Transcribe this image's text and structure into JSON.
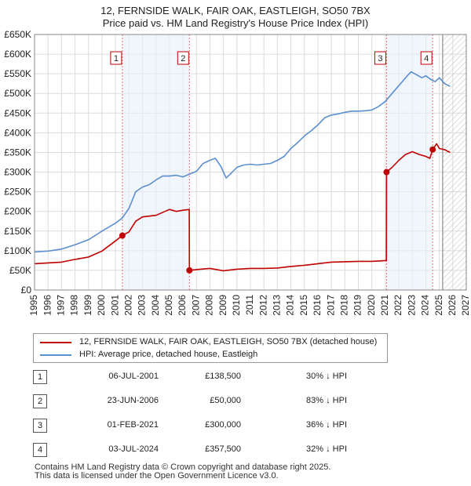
{
  "title_line1": "12, FERNSIDE WALK, FAIR OAK, EASTLEIGH, SO50 7BX",
  "title_line2": "Price paid vs. HM Land Registry's House Price Index (HPI)",
  "chart_data": {
    "type": "line",
    "xlim": [
      1995,
      2027
    ],
    "ylim": [
      0,
      650000
    ],
    "yticks": [
      {
        "v": 0,
        "label": "£0"
      },
      {
        "v": 50000,
        "label": "£50K"
      },
      {
        "v": 100000,
        "label": "£100K"
      },
      {
        "v": 150000,
        "label": "£150K"
      },
      {
        "v": 200000,
        "label": "£200K"
      },
      {
        "v": 250000,
        "label": "£250K"
      },
      {
        "v": 300000,
        "label": "£300K"
      },
      {
        "v": 350000,
        "label": "£350K"
      },
      {
        "v": 400000,
        "label": "£400K"
      },
      {
        "v": 450000,
        "label": "£450K"
      },
      {
        "v": 500000,
        "label": "£500K"
      },
      {
        "v": 550000,
        "label": "£550K"
      },
      {
        "v": 600000,
        "label": "£600K"
      },
      {
        "v": 650000,
        "label": "£650K"
      }
    ],
    "xticks": [
      "1995",
      "1996",
      "1997",
      "1998",
      "1999",
      "2000",
      "2001",
      "2002",
      "2003",
      "2004",
      "2005",
      "2006",
      "2007",
      "2008",
      "2009",
      "2010",
      "2011",
      "2012",
      "2013",
      "2014",
      "2015",
      "2016",
      "2017",
      "2018",
      "2019",
      "2020",
      "2021",
      "2022",
      "2023",
      "2024",
      "2025",
      "2026",
      "2027"
    ],
    "forecast_start": 2025.25,
    "series": [
      {
        "name": "HPI: Average price, detached house, Eastleigh",
        "color": "#5b8fcf",
        "points": [
          [
            1995.0,
            97000
          ],
          [
            1996.0,
            99000
          ],
          [
            1997.0,
            104000
          ],
          [
            1998.0,
            115000
          ],
          [
            1999.0,
            128000
          ],
          [
            2000.0,
            150000
          ],
          [
            2001.0,
            170000
          ],
          [
            2001.5,
            183000
          ],
          [
            2002.0,
            208000
          ],
          [
            2002.5,
            250000
          ],
          [
            2003.0,
            262000
          ],
          [
            2003.5,
            268000
          ],
          [
            2004.0,
            280000
          ],
          [
            2004.5,
            290000
          ],
          [
            2005.0,
            290000
          ],
          [
            2005.5,
            292000
          ],
          [
            2006.0,
            288000
          ],
          [
            2006.5,
            295000
          ],
          [
            2007.0,
            302000
          ],
          [
            2007.5,
            322000
          ],
          [
            2008.0,
            330000
          ],
          [
            2008.4,
            335000
          ],
          [
            2008.8,
            315000
          ],
          [
            2009.2,
            285000
          ],
          [
            2009.6,
            298000
          ],
          [
            2010.0,
            312000
          ],
          [
            2010.5,
            318000
          ],
          [
            2011.0,
            320000
          ],
          [
            2011.5,
            318000
          ],
          [
            2012.0,
            320000
          ],
          [
            2012.5,
            322000
          ],
          [
            2013.0,
            330000
          ],
          [
            2013.5,
            340000
          ],
          [
            2014.0,
            360000
          ],
          [
            2014.5,
            375000
          ],
          [
            2015.0,
            392000
          ],
          [
            2015.5,
            405000
          ],
          [
            2016.0,
            420000
          ],
          [
            2016.5,
            438000
          ],
          [
            2017.0,
            445000
          ],
          [
            2017.5,
            448000
          ],
          [
            2018.0,
            452000
          ],
          [
            2018.5,
            455000
          ],
          [
            2019.0,
            455000
          ],
          [
            2019.5,
            456000
          ],
          [
            2020.0,
            458000
          ],
          [
            2020.5,
            467000
          ],
          [
            2021.0,
            480000
          ],
          [
            2021.5,
            500000
          ],
          [
            2022.0,
            520000
          ],
          [
            2022.5,
            540000
          ],
          [
            2022.9,
            555000
          ],
          [
            2023.3,
            548000
          ],
          [
            2023.7,
            540000
          ],
          [
            2024.0,
            545000
          ],
          [
            2024.4,
            535000
          ],
          [
            2024.7,
            530000
          ],
          [
            2025.0,
            540000
          ],
          [
            2025.4,
            525000
          ],
          [
            2025.8,
            518000
          ]
        ]
      },
      {
        "name": "12, FERNSIDE WALK, FAIR OAK, EASTLEIGH, SO50 7BX (detached house)",
        "color": "#c00000",
        "points": [
          [
            1995.0,
            67000
          ],
          [
            1996.0,
            69000
          ],
          [
            1997.0,
            71000
          ],
          [
            1998.0,
            78000
          ],
          [
            1999.0,
            84000
          ],
          [
            2000.0,
            99000
          ],
          [
            2001.0,
            125000
          ],
          [
            2001.51,
            138500
          ],
          [
            2002.0,
            148000
          ],
          [
            2002.5,
            175000
          ],
          [
            2003.0,
            186000
          ],
          [
            2004.0,
            190000
          ],
          [
            2005.0,
            205000
          ],
          [
            2005.5,
            200000
          ],
          [
            2006.0,
            203000
          ],
          [
            2006.47,
            205000
          ],
          [
            2006.48,
            50000
          ],
          [
            2007.0,
            52000
          ],
          [
            2008.0,
            55000
          ],
          [
            2009.0,
            49000
          ],
          [
            2010.0,
            53000
          ],
          [
            2011.0,
            55000
          ],
          [
            2012.0,
            55000
          ],
          [
            2013.0,
            56000
          ],
          [
            2014.0,
            60000
          ],
          [
            2015.0,
            63000
          ],
          [
            2016.0,
            67000
          ],
          [
            2017.0,
            71000
          ],
          [
            2018.0,
            72000
          ],
          [
            2019.0,
            73000
          ],
          [
            2020.0,
            73000
          ],
          [
            2021.0,
            75000
          ],
          [
            2021.08,
            75000
          ],
          [
            2021.09,
            300000
          ],
          [
            2021.5,
            312000
          ],
          [
            2022.0,
            330000
          ],
          [
            2022.5,
            345000
          ],
          [
            2023.0,
            352000
          ],
          [
            2023.5,
            345000
          ],
          [
            2024.0,
            340000
          ],
          [
            2024.3,
            335000
          ],
          [
            2024.51,
            357500
          ],
          [
            2024.8,
            372000
          ],
          [
            2025.0,
            360000
          ],
          [
            2025.4,
            357000
          ],
          [
            2025.8,
            350000
          ]
        ]
      }
    ],
    "sales": [
      {
        "num": "1",
        "x": 2001.51,
        "price": 138500
      },
      {
        "num": "2",
        "x": 2006.48,
        "price": 50000
      },
      {
        "num": "3",
        "x": 2021.09,
        "price": 300000
      },
      {
        "num": "4",
        "x": 2024.51,
        "price": 357500
      }
    ]
  },
  "legend": [
    {
      "label": "12, FERNSIDE WALK, FAIR OAK, EASTLEIGH, SO50 7BX (detached house)",
      "color": "#c00000"
    },
    {
      "label": "HPI: Average price, detached house, Eastleigh",
      "color": "#5b8fcf"
    }
  ],
  "sales_table": [
    {
      "num": "1",
      "date": "06-JUL-2001",
      "price": "£138,500",
      "diff": "30% ↓ HPI"
    },
    {
      "num": "2",
      "date": "23-JUN-2006",
      "price": "£50,000",
      "diff": "83% ↓ HPI"
    },
    {
      "num": "3",
      "date": "01-FEB-2021",
      "price": "£300,000",
      "diff": "36% ↓ HPI"
    },
    {
      "num": "4",
      "date": "03-JUL-2024",
      "price": "£357,500",
      "diff": "32% ↓ HPI"
    }
  ],
  "footer": {
    "line1": "Contains HM Land Registry data © Crown copyright and database right 2025.",
    "line2": "This data is licensed under the Open Government Licence v3.0."
  }
}
